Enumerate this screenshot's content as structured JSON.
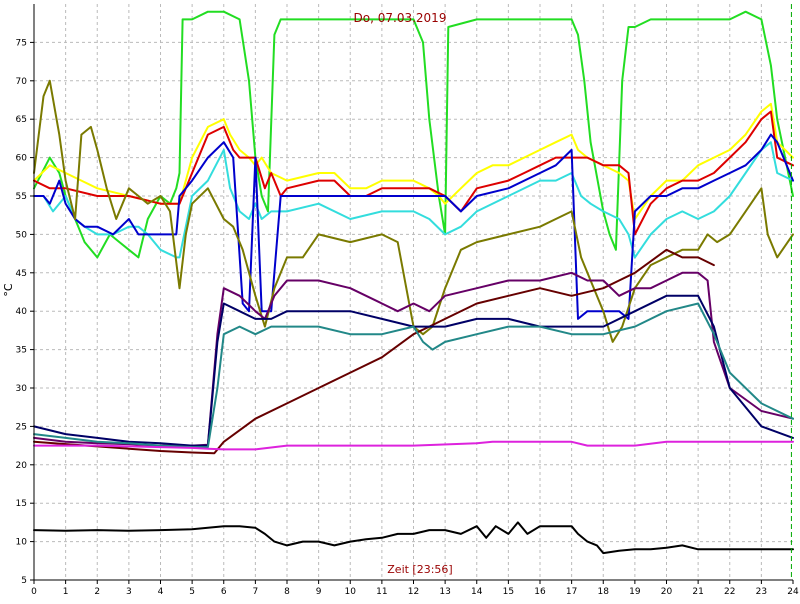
{
  "chart_data": {
    "type": "line",
    "title": "Do, 07.03.2019",
    "xlabel": "Zeit [23:56]",
    "ylabel": "°C",
    "xlim": [
      0,
      24
    ],
    "ylim": [
      5,
      80
    ],
    "x_ticks": [
      "0",
      "1",
      "2",
      "3",
      "4",
      "5",
      "6",
      "7",
      "8",
      "9",
      "10",
      "11",
      "12",
      "13",
      "14",
      "15",
      "16",
      "17",
      "18",
      "19",
      "20",
      "21",
      "22",
      "23",
      "24"
    ],
    "y_ticks": [
      "5",
      "10",
      "15",
      "20",
      "25",
      "30",
      "35",
      "40",
      "45",
      "50",
      "55",
      "60",
      "65",
      "70",
      "75"
    ],
    "grid": true,
    "current_time_marker": 23.95,
    "colors": {
      "title": "#990000",
      "xlabel": "#990000",
      "grid": "#bbbbbb",
      "axis": "#000000"
    },
    "series": [
      {
        "color": "#22dd22",
        "x": [
          0,
          0.5,
          0.8,
          1,
          1.3,
          1.6,
          2,
          2.4,
          2.7,
          3,
          3.3,
          3.6,
          4,
          4.3,
          4.5,
          4.6,
          4.7,
          5,
          5.5,
          6,
          6.5,
          6.8,
          7,
          7.2,
          7.4,
          7.6,
          7.8,
          8,
          9,
          10,
          11,
          11.5,
          12,
          12.3,
          12.5,
          12.8,
          13,
          13.1,
          14,
          15,
          16,
          16.5,
          17,
          17.2,
          17.4,
          17.6,
          18,
          18.2,
          18.4,
          18.6,
          18.8,
          19,
          19.5,
          20,
          21,
          22,
          22.5,
          23,
          23.3,
          23.5,
          24
        ],
        "y": [
          56,
          60,
          58,
          55,
          52,
          49,
          47,
          50,
          49,
          48,
          47,
          52,
          55,
          54,
          56,
          58,
          78,
          78,
          79,
          79,
          78,
          70,
          60,
          55,
          53,
          76,
          78,
          78,
          78,
          78,
          78,
          78,
          78,
          75,
          65,
          55,
          50,
          77,
          78,
          78,
          78,
          78,
          78,
          76,
          70,
          62,
          53,
          50,
          48,
          70,
          77,
          77,
          78,
          78,
          78,
          78,
          79,
          78,
          72,
          65,
          55
        ]
      },
      {
        "color": "#ffff00",
        "x": [
          0,
          0.5,
          1,
          1.5,
          2,
          3,
          4,
          4.6,
          5,
          5.5,
          6,
          6.2,
          6.5,
          6.8,
          7,
          7.2,
          7.5,
          8,
          9,
          9.5,
          10,
          10.5,
          11,
          11.5,
          12,
          12.5,
          12.8,
          13,
          13.5,
          14,
          14.5,
          15,
          16,
          16.5,
          17,
          17.2,
          17.5,
          18,
          18.5,
          18.8,
          19,
          19.5,
          20,
          20.5,
          21,
          21.5,
          22,
          22.5,
          23,
          23.3,
          23.5,
          24
        ],
        "y": [
          57,
          59,
          58,
          57,
          56,
          55,
          54,
          54,
          60,
          64,
          65,
          63,
          61,
          60,
          59,
          60,
          58,
          57,
          58,
          58,
          56,
          56,
          57,
          57,
          57,
          56,
          55,
          54,
          56,
          58,
          59,
          59,
          61,
          62,
          63,
          61,
          60,
          59,
          58,
          57,
          52,
          55,
          57,
          57,
          59,
          60,
          61,
          63,
          66,
          67,
          62,
          60
        ]
      },
      {
        "color": "#dd0000",
        "x": [
          0,
          0.5,
          1,
          2,
          3,
          4,
          4.6,
          5,
          5.5,
          6,
          6.3,
          6.5,
          7,
          7.3,
          7.5,
          7.8,
          8,
          9,
          9.5,
          10,
          10.5,
          11,
          11.5,
          12,
          12.5,
          13,
          13.5,
          14,
          15,
          15.5,
          16,
          16.5,
          17,
          17.5,
          18,
          18.5,
          18.8,
          19,
          19.5,
          20,
          20.5,
          21,
          21.5,
          22,
          22.5,
          23,
          23.3,
          23.5,
          24
        ],
        "y": [
          57,
          56,
          56,
          55,
          55,
          54,
          54,
          58,
          63,
          64,
          61,
          60,
          60,
          56,
          58,
          55,
          56,
          57,
          57,
          55,
          55,
          56,
          56,
          56,
          56,
          55,
          53,
          56,
          57,
          58,
          59,
          60,
          60,
          60,
          59,
          59,
          58,
          50,
          54,
          56,
          57,
          57,
          58,
          60,
          62,
          65,
          66,
          60,
          59
        ]
      },
      {
        "color": "#33dddd",
        "x": [
          0,
          0.3,
          0.6,
          1,
          1.3,
          1.6,
          2,
          2.5,
          3,
          3.3,
          3.6,
          4,
          4.5,
          4.6,
          5,
          5.5,
          6,
          6.2,
          6.5,
          6.8,
          7,
          7.2,
          7.5,
          8,
          9,
          10,
          11,
          12,
          12.5,
          13,
          13.5,
          14,
          15,
          16,
          16.5,
          17,
          17.3,
          17.6,
          18,
          18.5,
          18.8,
          19,
          19.5,
          20,
          20.5,
          21,
          21.5,
          22,
          22.5,
          23,
          23.3,
          23.5,
          24
        ],
        "y": [
          55,
          55,
          53,
          55,
          52,
          51,
          50,
          50,
          51,
          51,
          50,
          48,
          47,
          47,
          55,
          57,
          61,
          56,
          53,
          52,
          54,
          52,
          53,
          53,
          54,
          52,
          53,
          53,
          52,
          50,
          51,
          53,
          55,
          57,
          57,
          58,
          55,
          54,
          53,
          52,
          50,
          47,
          50,
          52,
          53,
          52,
          53,
          55,
          58,
          61,
          62,
          58,
          57
        ]
      },
      {
        "color": "#0000cc",
        "x": [
          0,
          0.3,
          0.5,
          0.8,
          1,
          1.3,
          1.6,
          2,
          2.5,
          3,
          3.3,
          3.6,
          4,
          4.5,
          4.6,
          5,
          5.5,
          6,
          6.3,
          6.6,
          6.8,
          7,
          7.2,
          7.5,
          7.8,
          8,
          9,
          10,
          11,
          11.5,
          11.8,
          12,
          12.5,
          13,
          13.5,
          14,
          15,
          16,
          16.5,
          17,
          17.2,
          17.5,
          18,
          18.5,
          18.8,
          19,
          19.5,
          20,
          20.5,
          21,
          21.5,
          22,
          22.5,
          23,
          23.3,
          23.5,
          24
        ],
        "y": [
          55,
          55,
          54,
          57,
          54,
          52,
          51,
          51,
          50,
          52,
          50,
          50,
          50,
          50,
          55,
          57,
          60,
          62,
          60,
          41,
          40,
          60,
          40,
          40,
          55,
          55,
          55,
          55,
          55,
          55,
          55,
          55,
          55,
          55,
          53,
          55,
          56,
          58,
          59,
          61,
          39,
          40,
          40,
          40,
          39,
          53,
          55,
          55,
          56,
          56,
          57,
          58,
          59,
          61,
          63,
          62,
          57
        ]
      },
      {
        "color": "#7a7a00",
        "x": [
          0,
          0.3,
          0.5,
          0.8,
          1,
          1.3,
          1.5,
          1.8,
          2,
          2.3,
          2.6,
          3,
          3.3,
          3.6,
          4,
          4.3,
          4.6,
          4.8,
          5,
          5.5,
          6,
          6.3,
          6.6,
          7,
          7.3,
          7.6,
          8,
          8.5,
          9,
          10,
          11,
          11.5,
          12,
          12.3,
          12.6,
          13,
          13.5,
          14,
          15,
          16,
          16.5,
          17,
          17.3,
          17.6,
          18,
          18.3,
          18.6,
          19,
          19.5,
          20,
          20.5,
          21,
          21.3,
          21.6,
          22,
          22.5,
          23,
          23.2,
          23.5,
          24
        ],
        "y": [
          58,
          68,
          70,
          63,
          57,
          52,
          63,
          64,
          61,
          56,
          52,
          56,
          55,
          54,
          55,
          53,
          43,
          50,
          54,
          56,
          52,
          51,
          48,
          42,
          38,
          43,
          47,
          47,
          50,
          49,
          50,
          49,
          38,
          37,
          38,
          43,
          48,
          49,
          50,
          51,
          52,
          53,
          47,
          44,
          40,
          36,
          38,
          43,
          46,
          47,
          48,
          48,
          50,
          49,
          50,
          53,
          56,
          50,
          47,
          50
        ]
      },
      {
        "color": "#660000",
        "x": [
          0,
          1,
          2,
          3,
          4,
          5,
          5.7,
          6,
          7,
          8,
          9,
          10,
          11,
          12,
          12.5,
          13,
          14,
          15,
          16,
          17,
          18,
          18.5,
          19,
          20,
          20.5,
          21,
          21.5
        ],
        "y": [
          23,
          22.7,
          22.4,
          22.1,
          21.8,
          21.6,
          21.5,
          23,
          26,
          28,
          30,
          32,
          34,
          37,
          38,
          39,
          41,
          42,
          43,
          42,
          43,
          44,
          45,
          48,
          47,
          47,
          46
        ]
      },
      {
        "color": "#660066",
        "x": [
          0,
          1,
          2,
          3,
          4,
          5,
          5.5,
          5.8,
          6,
          6.5,
          7,
          7.3,
          7.6,
          8,
          9,
          10,
          11,
          11.5,
          12,
          12.5,
          13,
          14,
          15,
          16,
          17,
          17.5,
          18,
          18.5,
          19,
          19.5,
          20,
          20.5,
          21,
          21.3,
          21.5,
          22,
          23,
          24
        ],
        "y": [
          23.5,
          23,
          22.8,
          22.7,
          22.5,
          22.5,
          22.6,
          37,
          43,
          42,
          40,
          39,
          42,
          44,
          44,
          43,
          41,
          40,
          41,
          40,
          42,
          43,
          44,
          44,
          45,
          44,
          44,
          42,
          43,
          43,
          44,
          45,
          45,
          44,
          36,
          30,
          27,
          26
        ]
      },
      {
        "color": "#000066",
        "x": [
          0,
          1,
          2,
          3,
          4,
          5,
          5.5,
          5.8,
          6,
          6.5,
          7,
          7.5,
          8,
          9,
          10,
          11,
          12,
          12.5,
          13,
          14,
          15,
          16,
          17,
          18,
          19,
          20,
          21,
          21.5,
          22,
          23,
          24
        ],
        "y": [
          25,
          24,
          23.5,
          23,
          22.8,
          22.5,
          22.5,
          36,
          41,
          40,
          39,
          39,
          40,
          40,
          40,
          39,
          38,
          38,
          38,
          39,
          39,
          38,
          38,
          38,
          40,
          42,
          42,
          38,
          30,
          25,
          23.5
        ]
      },
      {
        "color": "#228888",
        "x": [
          0,
          1,
          2,
          3,
          4,
          5,
          5.5,
          5.8,
          6,
          6.5,
          7,
          7.5,
          8,
          9,
          10,
          11,
          12,
          12.3,
          12.6,
          13,
          14,
          15,
          16,
          17,
          18,
          19,
          20,
          21,
          21.5,
          22,
          23,
          24
        ],
        "y": [
          24,
          23.5,
          23,
          22.8,
          22.5,
          22.3,
          22.3,
          30,
          37,
          38,
          37,
          38,
          38,
          38,
          37,
          37,
          38,
          36,
          35,
          36,
          37,
          38,
          38,
          37,
          37,
          38,
          40,
          41,
          37,
          32,
          28,
          26
        ]
      },
      {
        "color": "#dd22dd",
        "x": [
          0,
          2,
          4,
          5,
          5.5,
          6,
          7,
          8,
          10,
          12,
          14,
          14.5,
          16,
          17,
          17.5,
          18,
          19,
          20,
          21,
          21.5,
          22,
          23,
          24
        ],
        "y": [
          22.5,
          22.5,
          22.3,
          22.2,
          22.1,
          22,
          22,
          22.5,
          22.5,
          22.5,
          22.8,
          23,
          23,
          23,
          22.5,
          22.5,
          22.5,
          23,
          23,
          23,
          23,
          23,
          23
        ]
      },
      {
        "color": "#000000",
        "x": [
          0,
          1,
          2,
          3,
          4,
          5,
          5.5,
          6,
          6.5,
          7,
          7.3,
          7.6,
          8,
          8.5,
          9,
          9.5,
          10,
          10.5,
          11,
          11.5,
          12,
          12.5,
          13,
          13.5,
          14,
          14.3,
          14.6,
          15,
          15.3,
          15.6,
          16,
          16.5,
          17,
          17.2,
          17.5,
          17.8,
          18,
          18.5,
          19,
          19.5,
          20,
          20.5,
          21,
          22,
          23,
          24
        ],
        "y": [
          11.5,
          11.4,
          11.5,
          11.4,
          11.5,
          11.6,
          11.8,
          12,
          12,
          11.8,
          11,
          10,
          9.5,
          10,
          10,
          9.5,
          10,
          10.3,
          10.5,
          11,
          11,
          11.5,
          11.5,
          11,
          12,
          10.5,
          12,
          11,
          12.5,
          11,
          12,
          12,
          12,
          11,
          10,
          9.5,
          8.5,
          8.8,
          9,
          9,
          9.2,
          9.5,
          9,
          9,
          9,
          9
        ]
      }
    ]
  }
}
